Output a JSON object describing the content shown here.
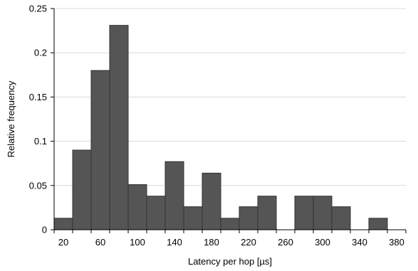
{
  "chart_data": {
    "type": "bar",
    "xlabel": "Latency per hop [µs]",
    "ylabel": "Relative frequency",
    "ylim": [
      0,
      0.25
    ],
    "grid": true,
    "bin_width": 20,
    "bin_starts": [
      10,
      30,
      50,
      70,
      90,
      110,
      130,
      150,
      170,
      190,
      210,
      230,
      250,
      270,
      290,
      310,
      330,
      350,
      370
    ],
    "values": [
      0.013,
      0.09,
      0.18,
      0.231,
      0.051,
      0.038,
      0.077,
      0.026,
      0.064,
      0.013,
      0.026,
      0.038,
      0.0,
      0.038,
      0.038,
      0.026,
      0.0,
      0.013,
      0.0
    ],
    "x_ticks": [
      "20",
      "60",
      "100",
      "140",
      "180",
      "220",
      "260",
      "300",
      "340",
      "380"
    ],
    "y_ticks": [
      "0",
      "0.05",
      "0.1",
      "0.15",
      "0.2",
      "0.25"
    ]
  },
  "colors": {
    "bar": "#555555",
    "bar_edge": "#333333",
    "grid": "#d9d9d9"
  }
}
